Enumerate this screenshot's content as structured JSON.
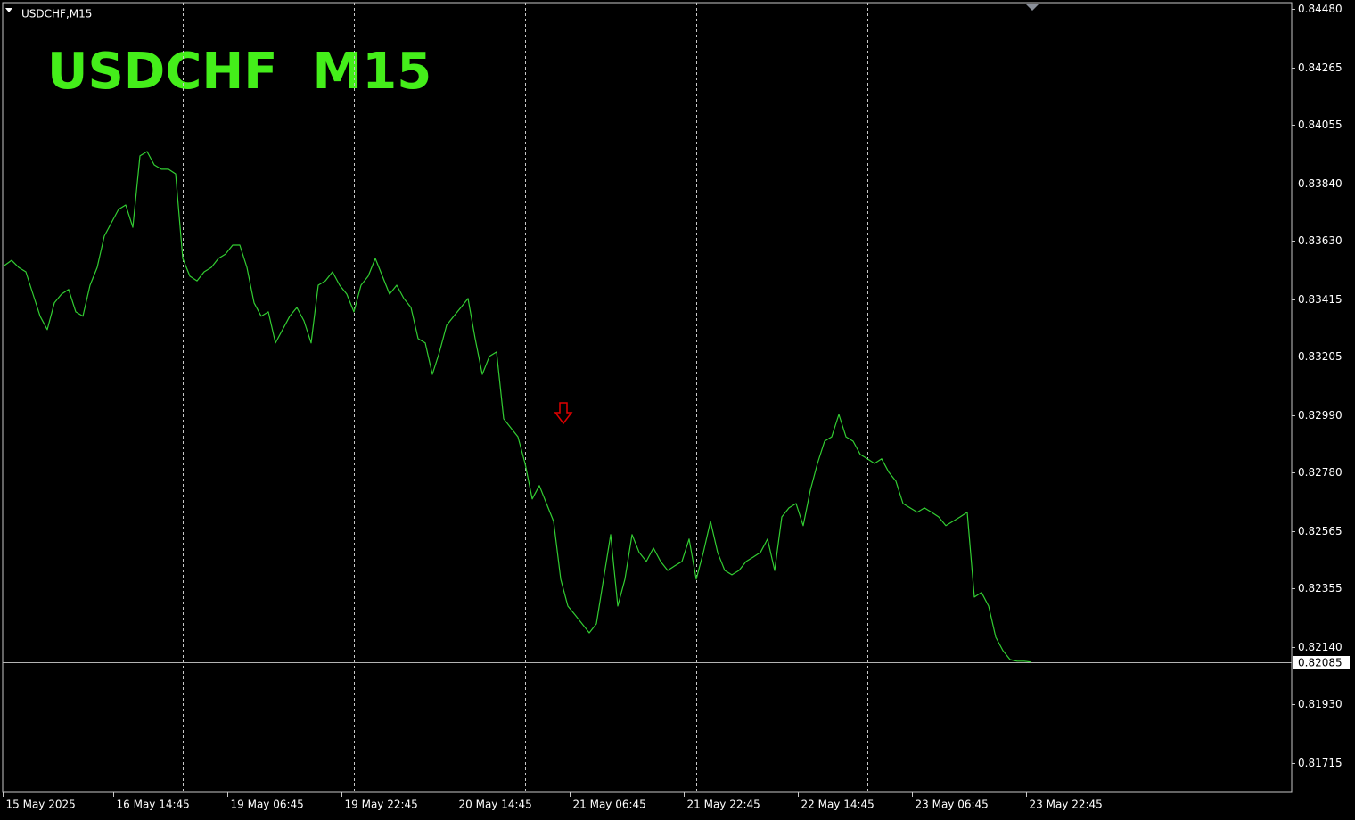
{
  "chart_data": {
    "type": "line",
    "symbol_label": "USDCHF,M15",
    "title": "USDCHF  M15",
    "title_color": "#44ee1a",
    "color": "#32cd32",
    "grid": true,
    "xlim": [
      -1,
      722
    ],
    "ylim": [
      0.81607,
      0.84503
    ],
    "xticks": [
      {
        "value": -1,
        "label": "15 May 2025"
      },
      {
        "value": 61,
        "label": "16 May 14:45"
      },
      {
        "value": 125,
        "label": "19 May 06:45"
      },
      {
        "value": 189,
        "label": "19 May 22:45"
      },
      {
        "value": 253,
        "label": "20 May 14:45"
      },
      {
        "value": 317,
        "label": "21 May 06:45"
      },
      {
        "value": 381,
        "label": "21 May 22:45"
      },
      {
        "value": 445,
        "label": "22 May 14:45"
      },
      {
        "value": 509,
        "label": "23 May 06:45"
      },
      {
        "value": 573,
        "label": "23 May 22:45"
      }
    ],
    "xgrid": [
      4,
      100,
      196,
      292,
      388,
      484,
      580
    ],
    "yticks": [
      {
        "value": 0.8448,
        "label": "0.84480"
      },
      0.84265,
      0.84055,
      {
        "value": 0.8384,
        "label": "0.83840"
      },
      {
        "value": 0.8363,
        "label": "0.83630"
      },
      0.83415,
      0.83205,
      {
        "value": 0.8299,
        "label": "0.82990"
      },
      {
        "value": 0.8278,
        "label": "0.82780"
      },
      0.82565,
      0.82355,
      {
        "value": 0.8214,
        "label": "0.82140"
      },
      {
        "value": 0.8193,
        "label": "0.81930"
      },
      0.81715
    ],
    "current_price": 0.82085,
    "x": [
      0,
      4,
      8,
      12,
      16,
      20,
      24,
      28,
      32,
      36,
      40,
      44,
      48,
      52,
      56,
      60,
      64,
      68,
      72,
      76,
      80,
      84,
      88,
      92,
      96,
      100,
      104,
      108,
      112,
      116,
      120,
      124,
      128,
      132,
      136,
      140,
      144,
      148,
      152,
      156,
      160,
      164,
      168,
      172,
      176,
      180,
      184,
      188,
      192,
      196,
      200,
      204,
      208,
      212,
      216,
      220,
      224,
      228,
      232,
      236,
      240,
      244,
      248,
      252,
      256,
      260,
      264,
      268,
      272,
      276,
      280,
      284,
      288,
      292,
      296,
      300,
      304,
      308,
      312,
      316,
      320,
      324,
      328,
      332,
      336,
      340,
      344,
      348,
      352,
      356,
      360,
      364,
      368,
      372,
      376,
      380,
      384,
      388,
      392,
      396,
      400,
      404,
      408,
      412,
      416,
      420,
      424,
      428,
      432,
      436,
      440,
      444,
      448,
      452,
      456,
      460,
      464,
      468,
      472,
      476,
      480,
      484,
      488,
      492,
      496,
      500,
      504,
      508,
      512,
      516,
      520,
      524,
      528,
      532,
      536,
      540,
      544,
      548,
      552,
      556,
      560,
      564,
      568,
      572,
      576
    ],
    "values": [
      0.83539,
      0.83558,
      0.83532,
      0.83516,
      0.83434,
      0.83353,
      0.83304,
      0.83402,
      0.83434,
      0.83451,
      0.83369,
      0.83353,
      0.83467,
      0.83532,
      0.83647,
      0.83696,
      0.83745,
      0.83761,
      0.83679,
      0.83941,
      0.83957,
      0.83908,
      0.83892,
      0.83892,
      0.83875,
      0.83565,
      0.835,
      0.83483,
      0.83516,
      0.83532,
      0.83565,
      0.83581,
      0.83614,
      0.83614,
      0.83532,
      0.83402,
      0.83353,
      0.83369,
      0.83255,
      0.83304,
      0.83353,
      0.83385,
      0.83336,
      0.83255,
      0.83467,
      0.83483,
      0.83516,
      0.83467,
      0.83434,
      0.83369,
      0.83467,
      0.835,
      0.83565,
      0.835,
      0.83434,
      0.83467,
      0.83418,
      0.83385,
      0.83271,
      0.83255,
      0.8314,
      0.83222,
      0.8332,
      0.83353,
      0.83385,
      0.83418,
      0.83271,
      0.8314,
      0.83206,
      0.83222,
      0.82977,
      0.82944,
      0.82911,
      0.82813,
      0.82683,
      0.82732,
      0.82666,
      0.82601,
      0.82389,
      0.8229,
      0.82258,
      0.82225,
      0.82192,
      0.82225,
      0.82389,
      0.82552,
      0.8229,
      0.82389,
      0.82552,
      0.82487,
      0.82454,
      0.82503,
      0.82454,
      0.82421,
      0.82438,
      0.82454,
      0.82536,
      0.82389,
      0.82487,
      0.82601,
      0.82487,
      0.82421,
      0.82405,
      0.82421,
      0.82454,
      0.8247,
      0.82487,
      0.82536,
      0.82421,
      0.82617,
      0.8265,
      0.82666,
      0.82585,
      0.82715,
      0.82813,
      0.82895,
      0.82911,
      0.82993,
      0.82911,
      0.82895,
      0.82846,
      0.8283,
      0.82813,
      0.8283,
      0.82781,
      0.82748,
      0.82666,
      0.8265,
      0.82634,
      0.8265,
      0.82634,
      0.82617,
      0.82585,
      0.82601,
      0.82617,
      0.82634,
      0.82323,
      0.8234,
      0.8229,
      0.82176,
      0.82127,
      0.82094,
      0.82088,
      0.82088,
      0.82085
    ]
  }
}
